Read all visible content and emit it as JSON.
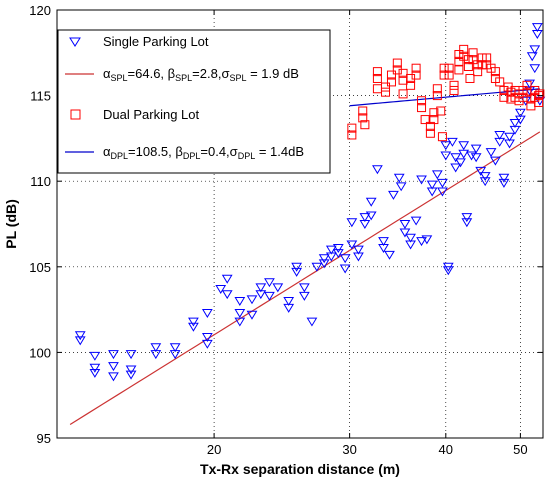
{
  "chart_data": {
    "type": "scatter",
    "title": "",
    "xlabel": "Tx-Rx separation distance (m)",
    "ylabel": "PL (dB)",
    "x_scale": "log",
    "xlim": [
      12.5,
      53.5
    ],
    "ylim": [
      95,
      120
    ],
    "x_ticks": [
      20,
      30,
      40,
      50
    ],
    "y_ticks": [
      95,
      100,
      105,
      110,
      115,
      120
    ],
    "grid": true,
    "legend_position": "top-left",
    "legend": {
      "single_label": "Single Parking Lot",
      "dual_label": "Dual Parking Lot",
      "spl_fit": {
        "a_sym": "α",
        "a_sub": "SPL",
        "a_val": "=64.6, ",
        "b_sym": "β",
        "b_sub": "SPL",
        "b_val": "=2.8,",
        "s_sym": "σ",
        "s_sub": "SPL",
        "s_val": " = 1.9 dB"
      },
      "dpl_fit": {
        "a_sym": "α",
        "a_sub": "DPL",
        "a_val": "=108.5, ",
        "b_sym": "β",
        "b_sub": "DPL",
        "b_val": "=0.4,",
        "s_sym": "σ",
        "s_sub": "DPL",
        "s_val": " =  1.4dB"
      }
    },
    "series": [
      {
        "name": "Single Parking Lot",
        "marker": "triangle-down",
        "color": "#0000ff",
        "points": [
          [
            13.4,
            101.0
          ],
          [
            13.4,
            100.7
          ],
          [
            14.0,
            99.8
          ],
          [
            14.0,
            99.1
          ],
          [
            14.0,
            98.8
          ],
          [
            14.8,
            99.9
          ],
          [
            14.8,
            99.2
          ],
          [
            14.8,
            98.6
          ],
          [
            15.6,
            99.9
          ],
          [
            15.6,
            99.0
          ],
          [
            15.6,
            98.7
          ],
          [
            16.8,
            100.3
          ],
          [
            16.8,
            99.9
          ],
          [
            17.8,
            100.3
          ],
          [
            17.8,
            99.9
          ],
          [
            18.8,
            101.8
          ],
          [
            18.8,
            101.5
          ],
          [
            19.6,
            102.3
          ],
          [
            19.6,
            100.9
          ],
          [
            19.6,
            100.5
          ],
          [
            20.4,
            103.7
          ],
          [
            20.8,
            104.3
          ],
          [
            20.8,
            103.4
          ],
          [
            21.6,
            103.0
          ],
          [
            21.6,
            102.3
          ],
          [
            21.6,
            101.8
          ],
          [
            22.4,
            103.1
          ],
          [
            22.4,
            102.2
          ],
          [
            23.0,
            103.8
          ],
          [
            23.0,
            103.4
          ],
          [
            23.6,
            104.1
          ],
          [
            23.6,
            103.3
          ],
          [
            24.2,
            103.8
          ],
          [
            25.0,
            103.0
          ],
          [
            25.0,
            102.6
          ],
          [
            25.6,
            105.0
          ],
          [
            25.6,
            104.7
          ],
          [
            26.2,
            103.8
          ],
          [
            26.2,
            103.3
          ],
          [
            26.8,
            101.8
          ],
          [
            27.2,
            105.0
          ],
          [
            27.8,
            105.5
          ],
          [
            27.8,
            105.2
          ],
          [
            28.4,
            106.0
          ],
          [
            28.4,
            105.6
          ],
          [
            29.0,
            106.1
          ],
          [
            29.0,
            105.8
          ],
          [
            29.6,
            105.5
          ],
          [
            29.6,
            104.9
          ],
          [
            30.2,
            107.6
          ],
          [
            30.2,
            106.3
          ],
          [
            30.8,
            106.0
          ],
          [
            30.8,
            105.6
          ],
          [
            31.4,
            107.9
          ],
          [
            31.4,
            107.5
          ],
          [
            32.0,
            108.8
          ],
          [
            32.0,
            108.0
          ],
          [
            32.6,
            110.7
          ],
          [
            33.2,
            106.5
          ],
          [
            33.2,
            106.1
          ],
          [
            33.8,
            105.7
          ],
          [
            34.2,
            109.2
          ],
          [
            34.8,
            110.2
          ],
          [
            35.0,
            109.7
          ],
          [
            35.4,
            107.5
          ],
          [
            35.4,
            107.0
          ],
          [
            36.0,
            106.7
          ],
          [
            36.0,
            106.3
          ],
          [
            36.6,
            107.7
          ],
          [
            37.2,
            110.1
          ],
          [
            37.2,
            106.5
          ],
          [
            37.8,
            106.6
          ],
          [
            38.4,
            109.8
          ],
          [
            38.4,
            109.4
          ],
          [
            39.0,
            110.4
          ],
          [
            39.6,
            109.9
          ],
          [
            39.6,
            109.4
          ],
          [
            40.0,
            112.1
          ],
          [
            40.0,
            111.5
          ],
          [
            40.3,
            105.0
          ],
          [
            40.3,
            104.8
          ],
          [
            40.8,
            112.3
          ],
          [
            41.2,
            111.4
          ],
          [
            41.2,
            110.8
          ],
          [
            41.8,
            111.1
          ],
          [
            42.2,
            112.1
          ],
          [
            42.2,
            111.6
          ],
          [
            42.6,
            107.9
          ],
          [
            42.6,
            107.6
          ],
          [
            43.2,
            111.5
          ],
          [
            43.8,
            111.9
          ],
          [
            43.8,
            111.4
          ],
          [
            44.4,
            110.6
          ],
          [
            45.0,
            110.3
          ],
          [
            45.0,
            110.0
          ],
          [
            45.8,
            111.7
          ],
          [
            46.4,
            111.2
          ],
          [
            47.0,
            112.7
          ],
          [
            47.0,
            112.3
          ],
          [
            47.6,
            110.2
          ],
          [
            47.6,
            109.9
          ],
          [
            48.4,
            112.6
          ],
          [
            48.4,
            112.2
          ],
          [
            49.2,
            113.4
          ],
          [
            49.2,
            113.0
          ],
          [
            50.0,
            114.0
          ],
          [
            50.0,
            113.6
          ],
          [
            50.8,
            114.7
          ],
          [
            51.4,
            115.7
          ],
          [
            51.4,
            115.3
          ],
          [
            51.8,
            117.3
          ],
          [
            52.2,
            117.7
          ],
          [
            52.2,
            116.6
          ],
          [
            52.6,
            119.0
          ],
          [
            52.6,
            118.6
          ],
          [
            53.0,
            114.7
          ]
        ]
      },
      {
        "name": "Dual Parking Lot",
        "marker": "square",
        "color": "#ff0000",
        "points": [
          [
            30.2,
            113.1
          ],
          [
            30.2,
            112.7
          ],
          [
            31.2,
            114.1
          ],
          [
            31.2,
            113.7
          ],
          [
            31.4,
            113.3
          ],
          [
            32.6,
            116.4
          ],
          [
            32.6,
            116.0
          ],
          [
            32.6,
            115.4
          ],
          [
            33.4,
            115.5
          ],
          [
            33.4,
            115.2
          ],
          [
            34.0,
            116.2
          ],
          [
            34.0,
            115.8
          ],
          [
            34.6,
            116.9
          ],
          [
            34.6,
            116.5
          ],
          [
            35.2,
            116.3
          ],
          [
            35.2,
            115.9
          ],
          [
            35.2,
            115.1
          ],
          [
            36.0,
            116.0
          ],
          [
            36.0,
            115.6
          ],
          [
            36.6,
            116.6
          ],
          [
            36.6,
            116.2
          ],
          [
            37.2,
            114.7
          ],
          [
            37.2,
            114.3
          ],
          [
            37.6,
            113.6
          ],
          [
            38.2,
            113.2
          ],
          [
            38.2,
            112.8
          ],
          [
            38.6,
            114.0
          ],
          [
            38.6,
            113.6
          ],
          [
            39.0,
            115.4
          ],
          [
            39.0,
            115.0
          ],
          [
            39.4,
            114.1
          ],
          [
            39.6,
            112.6
          ],
          [
            39.8,
            116.6
          ],
          [
            39.8,
            116.2
          ],
          [
            40.4,
            116.6
          ],
          [
            40.4,
            116.2
          ],
          [
            41.0,
            115.6
          ],
          [
            41.0,
            115.3
          ],
          [
            41.6,
            117.4
          ],
          [
            41.6,
            117.0
          ],
          [
            41.6,
            116.5
          ],
          [
            42.2,
            117.7
          ],
          [
            42.2,
            117.3
          ],
          [
            42.8,
            117.1
          ],
          [
            42.8,
            116.7
          ],
          [
            43.0,
            116.0
          ],
          [
            43.4,
            117.5
          ],
          [
            43.4,
            117.1
          ],
          [
            44.0,
            116.8
          ],
          [
            44.0,
            116.4
          ],
          [
            44.6,
            117.2
          ],
          [
            44.6,
            116.8
          ],
          [
            45.2,
            117.2
          ],
          [
            45.2,
            116.8
          ],
          [
            45.8,
            116.6
          ],
          [
            46.4,
            116.4
          ],
          [
            46.4,
            116.0
          ],
          [
            47.0,
            115.8
          ],
          [
            47.6,
            115.3
          ],
          [
            47.6,
            114.9
          ],
          [
            48.2,
            115.5
          ],
          [
            48.6,
            115.2
          ],
          [
            48.6,
            114.8
          ],
          [
            49.2,
            115.3
          ],
          [
            49.2,
            114.9
          ],
          [
            49.8,
            115.1
          ],
          [
            49.8,
            114.7
          ],
          [
            50.4,
            115.3
          ],
          [
            50.4,
            114.9
          ],
          [
            51.0,
            115.6
          ],
          [
            51.0,
            115.2
          ],
          [
            51.6,
            114.8
          ],
          [
            51.6,
            114.4
          ],
          [
            52.2,
            115.3
          ],
          [
            52.2,
            114.9
          ],
          [
            52.8,
            115.0
          ],
          [
            52.8,
            114.6
          ],
          [
            53.0,
            115.1
          ]
        ]
      }
    ],
    "fits": [
      {
        "name": "SPL fit",
        "alpha": 64.6,
        "beta": 2.8,
        "color": "#cc3333",
        "x_range": [
          13.0,
          53.0
        ]
      },
      {
        "name": "DPL fit",
        "alpha": 108.5,
        "beta": 0.4,
        "color": "#0000cc",
        "x_range": [
          30.0,
          53.0
        ]
      }
    ]
  }
}
